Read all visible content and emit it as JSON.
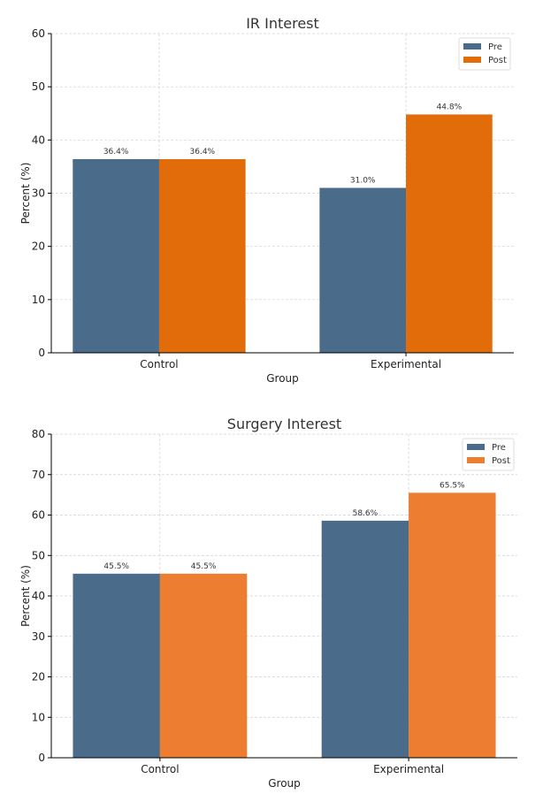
{
  "chart_data": [
    {
      "type": "bar",
      "title": "IR Interest",
      "xlabel": "Group",
      "ylabel": "Percent (%)",
      "categories": [
        "Control",
        "Experimental"
      ],
      "ylim": [
        0,
        60
      ],
      "yticks": [
        0,
        10,
        20,
        30,
        40,
        50,
        60
      ],
      "grid": true,
      "legend": "top-right",
      "series": [
        {
          "name": "Pre",
          "values": [
            36.4,
            31.0
          ],
          "labels": [
            "36.4%",
            "31.0%"
          ],
          "color": "#4a6b8a"
        },
        {
          "name": "Post",
          "values": [
            36.4,
            44.8
          ],
          "labels": [
            "36.4%",
            "44.8%"
          ],
          "color": "#e36c0a"
        }
      ]
    },
    {
      "type": "bar",
      "title": "Surgery Interest",
      "xlabel": "Group",
      "ylabel": "Percent (%)",
      "categories": [
        "Control",
        "Experimental"
      ],
      "ylim": [
        0,
        80
      ],
      "yticks": [
        0,
        10,
        20,
        30,
        40,
        50,
        60,
        70,
        80
      ],
      "grid": true,
      "legend": "top-right",
      "series": [
        {
          "name": "Pre",
          "values": [
            45.5,
            58.6
          ],
          "labels": [
            "45.5%",
            "58.6%"
          ],
          "color": "#4a6b8a"
        },
        {
          "name": "Post",
          "values": [
            45.5,
            65.5
          ],
          "labels": [
            "45.5%",
            "65.5%"
          ],
          "color": "#ed7d31"
        }
      ]
    }
  ]
}
